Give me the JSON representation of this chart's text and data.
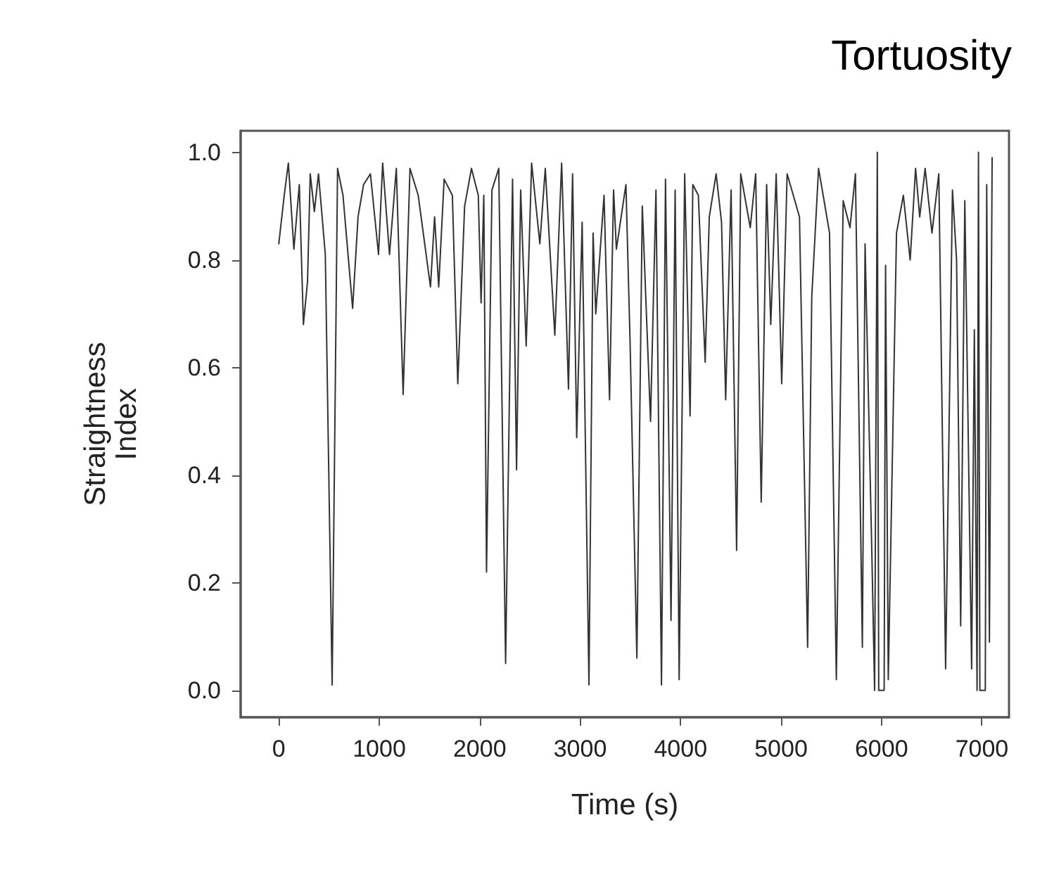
{
  "chart_data": {
    "type": "line",
    "title": "Tortuosity",
    "xlabel": "Time (s)",
    "ylabel": "Straightness\nIndex",
    "xlim": [
      -380,
      7270
    ],
    "ylim": [
      -0.05,
      1.04
    ],
    "xticks": [
      0,
      1000,
      2000,
      3000,
      4000,
      5000,
      6000,
      7000
    ],
    "yticks": [
      {
        "value": 0,
        "label": "0.0"
      },
      {
        "value": 0.2,
        "label": "0.2"
      },
      {
        "value": 0.4,
        "label": "0.4"
      },
      {
        "value": 0.6,
        "label": "0.6"
      },
      {
        "value": 0.8,
        "label": "0.8"
      },
      {
        "value": 1,
        "label": "1.0"
      }
    ],
    "grid": false,
    "marker": "none",
    "line_style": "solid",
    "series": [
      {
        "color": "#333333",
        "x": [
          0,
          54,
          95,
          150,
          204,
          245,
          286,
          313,
          354,
          395,
          463,
          531,
          585,
          639,
          680,
          735,
          789,
          844,
          912,
          993,
          1034,
          1102,
          1170,
          1238,
          1306,
          1388,
          1510,
          1551,
          1592,
          1646,
          1728,
          1782,
          1850,
          1918,
          1986,
          2014,
          2041,
          2068,
          2122,
          2190,
          2258,
          2327,
          2367,
          2408,
          2463,
          2517,
          2599,
          2653,
          2748,
          2816,
          2884,
          2925,
          2966,
          3020,
          3088,
          3129,
          3156,
          3238,
          3293,
          3333,
          3361,
          3456,
          3497,
          3565,
          3619,
          3701,
          3755,
          3810,
          3850,
          3905,
          3946,
          3986,
          4041,
          4095,
          4122,
          4177,
          4245,
          4286,
          4354,
          4408,
          4449,
          4503,
          4558,
          4599,
          4694,
          4748,
          4803,
          4857,
          4898,
          4952,
          5007,
          5061,
          5184,
          5265,
          5306,
          5374,
          5429,
          5483,
          5551,
          5619,
          5687,
          5741,
          5810,
          5837,
          5905,
          5932,
          5959,
          5973,
          6027,
          6041,
          6068,
          6150,
          6218,
          6286,
          6340,
          6381,
          6435,
          6503,
          6571,
          6639,
          6707,
          6748,
          6789,
          6830,
          6898,
          6925,
          6952,
          6966,
          6980,
          7034,
          7048,
          7075,
          7102
        ],
        "values": [
          0.83,
          0.92,
          0.98,
          0.82,
          0.94,
          0.68,
          0.76,
          0.96,
          0.89,
          0.96,
          0.81,
          0.01,
          0.97,
          0.92,
          0.83,
          0.71,
          0.88,
          0.94,
          0.96,
          0.81,
          0.98,
          0.81,
          0.97,
          0.55,
          0.97,
          0.92,
          0.75,
          0.88,
          0.75,
          0.95,
          0.92,
          0.57,
          0.9,
          0.97,
          0.92,
          0.72,
          0.92,
          0.22,
          0.93,
          0.97,
          0.05,
          0.95,
          0.41,
          0.93,
          0.64,
          0.98,
          0.83,
          0.97,
          0.66,
          0.98,
          0.56,
          0.96,
          0.47,
          0.87,
          0.01,
          0.85,
          0.7,
          0.92,
          0.54,
          0.93,
          0.82,
          0.94,
          0.65,
          0.06,
          0.9,
          0.5,
          0.93,
          0.01,
          0.95,
          0.13,
          0.93,
          0.02,
          0.96,
          0.51,
          0.94,
          0.92,
          0.61,
          0.88,
          0.96,
          0.87,
          0.54,
          0.93,
          0.26,
          0.96,
          0.86,
          0.96,
          0.35,
          0.94,
          0.68,
          0.96,
          0.57,
          0.96,
          0.88,
          0.08,
          0.73,
          0.97,
          0.91,
          0.85,
          0.02,
          0.91,
          0.86,
          0.96,
          0.08,
          0.83,
          0.25,
          0,
          1,
          0,
          0,
          0.79,
          0.02,
          0.85,
          0.92,
          0.8,
          0.97,
          0.88,
          0.97,
          0.85,
          0.96,
          0.04,
          0.93,
          0.8,
          0.12,
          0.91,
          0.04,
          0.67,
          0,
          1,
          0,
          0,
          0.94,
          0.09,
          0.99
        ]
      }
    ]
  }
}
